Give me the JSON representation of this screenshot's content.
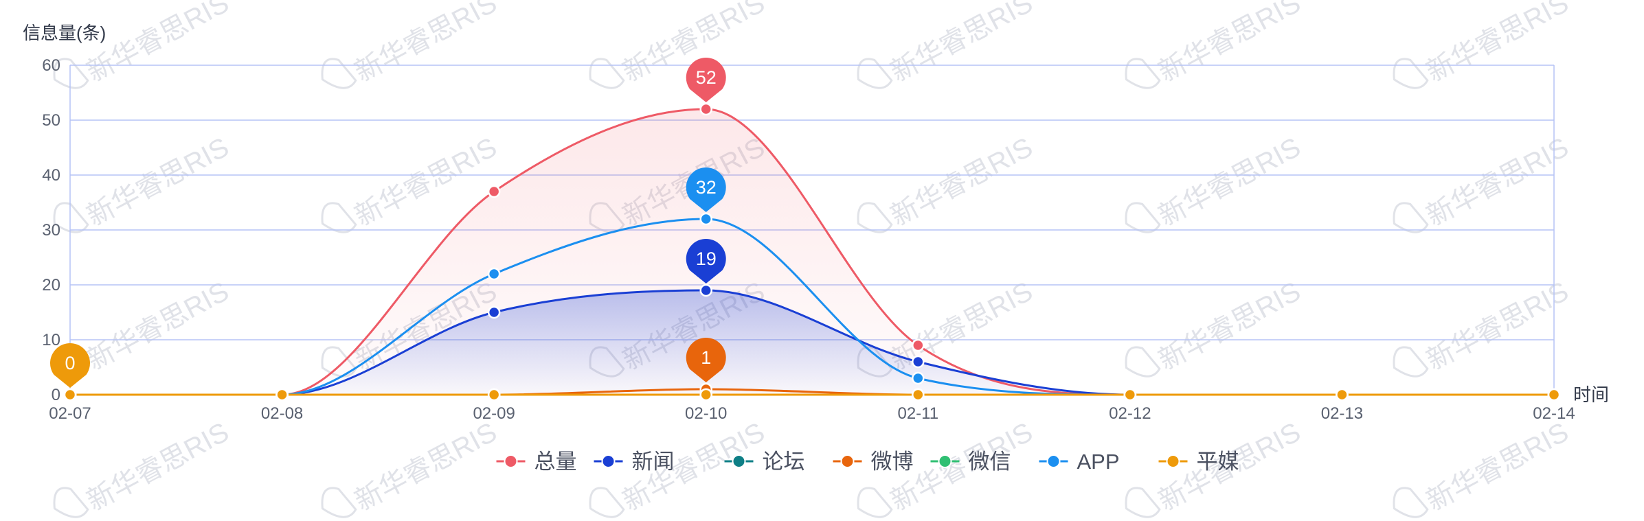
{
  "chart_data": {
    "type": "line",
    "smooth": true,
    "ylabel": "信息量(条)",
    "xlabel": "时间",
    "ylim": [
      0,
      60
    ],
    "yticks": [
      0,
      10,
      20,
      30,
      40,
      50,
      60
    ],
    "grid": true,
    "legend_position": "bottom-center",
    "categories": [
      "02-07",
      "02-08",
      "02-09",
      "02-10",
      "02-11",
      "02-12",
      "02-13",
      "02-14"
    ],
    "series": [
      {
        "name": "总量",
        "color": "#ee5a66",
        "area": true,
        "values": [
          0,
          0,
          37,
          52,
          9,
          0,
          0,
          0
        ]
      },
      {
        "name": "新闻",
        "color": "#1a3fd4",
        "area": true,
        "values": [
          0,
          0,
          15,
          19,
          6,
          0,
          0,
          0
        ]
      },
      {
        "name": "论坛",
        "color": "#0e7f86",
        "area": false,
        "values": [
          0,
          0,
          0,
          0,
          0,
          0,
          0,
          0
        ]
      },
      {
        "name": "微博",
        "color": "#e8650c",
        "area": false,
        "values": [
          0,
          0,
          0,
          1,
          0,
          0,
          0,
          0
        ]
      },
      {
        "name": "微信",
        "color": "#2fbf72",
        "area": false,
        "values": [
          0,
          0,
          0,
          0,
          0,
          0,
          0,
          0
        ]
      },
      {
        "name": "APP",
        "color": "#1b8ff0",
        "area": false,
        "values": [
          0,
          0,
          22,
          32,
          3,
          0,
          0,
          0
        ]
      },
      {
        "name": "平媒",
        "color": "#ee9a0a",
        "area": false,
        "values": [
          0,
          0,
          0,
          0,
          0,
          0,
          0,
          0
        ]
      }
    ],
    "annotations": [
      {
        "label": "52",
        "series": "总量",
        "category": "02-10",
        "value": 52,
        "color": "#ee5a66"
      },
      {
        "label": "32",
        "series": "APP",
        "category": "02-10",
        "value": 32,
        "color": "#1b8ff0"
      },
      {
        "label": "19",
        "series": "新闻",
        "category": "02-10",
        "value": 19,
        "color": "#1a3fd4"
      },
      {
        "label": "1",
        "series": "微博",
        "category": "02-10",
        "value": 1,
        "color": "#e8650c"
      },
      {
        "label": "0",
        "series": "平媒",
        "category": "02-07",
        "value": 0,
        "color": "#ee9a0a"
      }
    ],
    "watermark": "新华睿思RIS"
  },
  "colors": {
    "grid": "#b6c3f5",
    "axis_text": "#5a6170"
  }
}
